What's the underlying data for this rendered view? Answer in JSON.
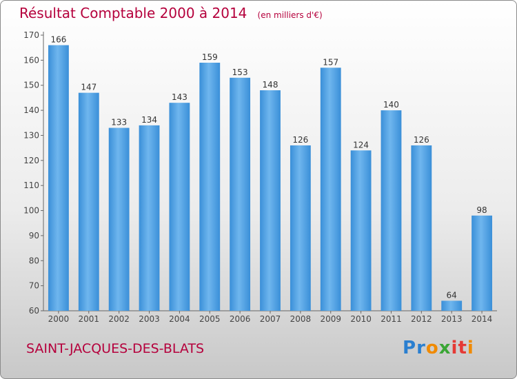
{
  "chart_data": {
    "type": "bar",
    "title": "Résultat Comptable 2000 à 2014",
    "subtitle": "(en milliers d'€)",
    "categories": [
      "2000",
      "2001",
      "2002",
      "2003",
      "2004",
      "2005",
      "2006",
      "2007",
      "2008",
      "2009",
      "2010",
      "2011",
      "2012",
      "2013",
      "2014"
    ],
    "values": [
      166,
      147,
      133,
      134,
      143,
      159,
      153,
      148,
      126,
      157,
      124,
      140,
      126,
      64,
      98
    ],
    "data_labels": [
      "166",
      "147",
      "133",
      "134",
      "143",
      "159",
      "153",
      "148",
      "126",
      "157",
      "124",
      "140",
      "126",
      "64",
      "98"
    ],
    "xlabel": "",
    "ylabel": "",
    "ylim": [
      60,
      170
    ],
    "yticks": [
      60,
      70,
      80,
      90,
      100,
      110,
      120,
      130,
      140,
      150,
      160,
      170
    ],
    "grid": false,
    "bar_color": "#3a8fd8",
    "bar_highlight_color": "#6fb6ee"
  },
  "footer": {
    "place_name": "SAINT-JACQUES-DES-BLATS"
  },
  "logo": {
    "text": "Proxiti",
    "letter_colors": [
      "#2a7fd0",
      "#2a7fd0",
      "#f08a00",
      "#3aa635",
      "#e53935",
      "#e53935",
      "#f08a00"
    ]
  }
}
